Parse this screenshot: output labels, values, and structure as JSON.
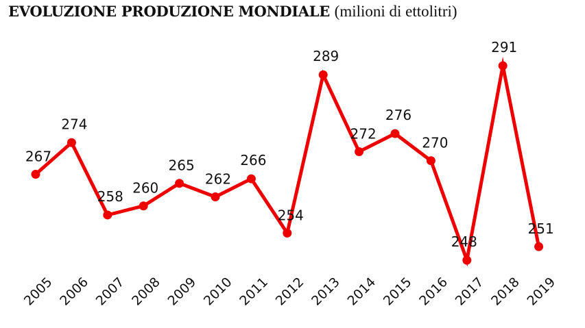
{
  "title": {
    "bold": "EVOLUZIONE PRODUZIONE MONDIALE",
    "unit": "(milioni di ettolitri)"
  },
  "chart_data": {
    "type": "line",
    "title": "EVOLUZIONE PRODUZIONE MONDIALE (milioni di ettolitri)",
    "xlabel": "",
    "ylabel": "milioni di ettolitri",
    "categories": [
      "2005",
      "2006",
      "2007",
      "2008",
      "2009",
      "2010",
      "2011",
      "2012",
      "2013",
      "2014",
      "2015",
      "2016",
      "2017",
      "2018",
      "2019"
    ],
    "series": [
      {
        "name": "Produzione mondiale",
        "values": [
          267,
          274,
          258,
          260,
          265,
          262,
          266,
          254,
          289,
          272,
          276,
          270,
          248,
          291,
          251
        ]
      }
    ],
    "data_labels": [
      "267",
      "274",
      "258",
      "260",
      "265",
      "262",
      "266",
      "254",
      "289",
      "272",
      "276",
      "270",
      "248",
      "291",
      "251"
    ],
    "ylim": [
      248,
      291
    ],
    "grid": false,
    "legend": "none",
    "color": "#ee0000"
  }
}
